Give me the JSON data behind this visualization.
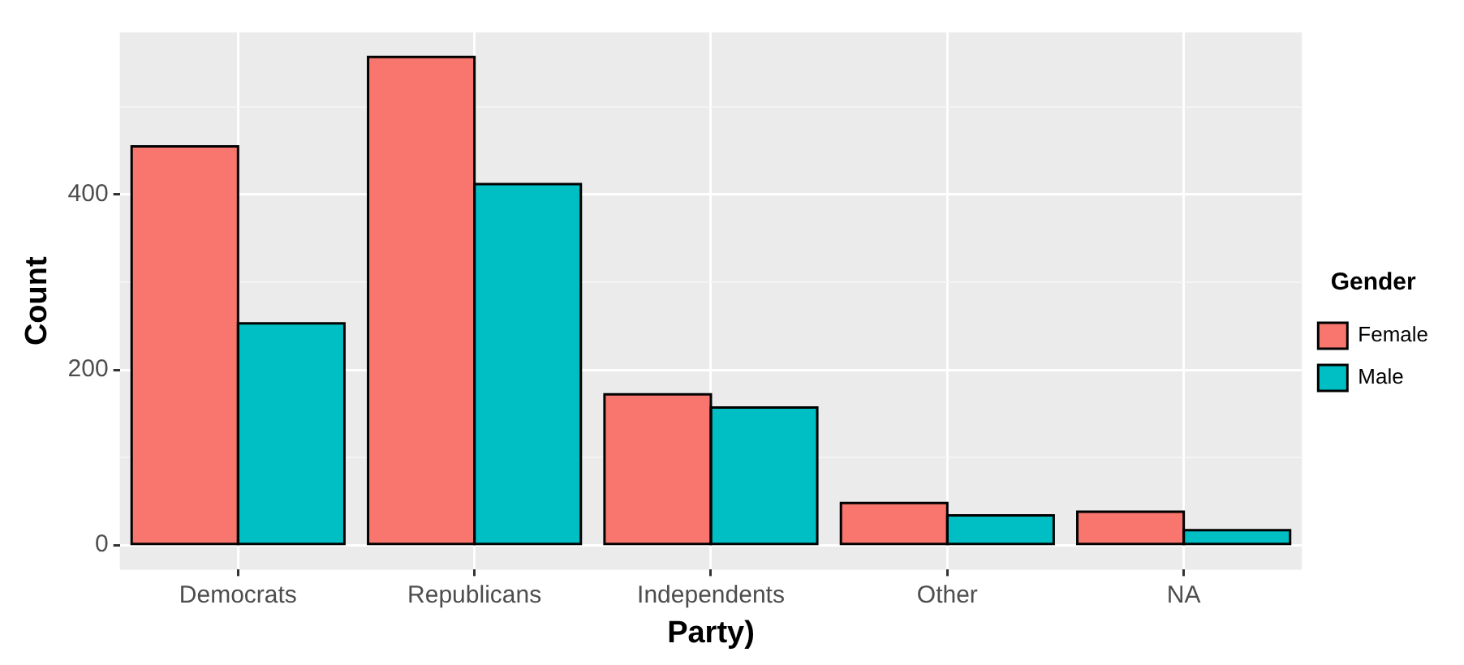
{
  "chart_data": {
    "type": "bar",
    "xlabel": "Party)",
    "ylabel": "Count",
    "legend_title": "Gender",
    "legend": "right",
    "grid": true,
    "categories": [
      "Democrats",
      "Republicans",
      "Independents",
      "Other",
      "NA"
    ],
    "series": [
      {
        "name": "Female",
        "color": "#f8766d",
        "values": [
          455,
          557,
          172,
          48,
          38
        ]
      },
      {
        "name": "Male",
        "color": "#00bfc4",
        "values": [
          253,
          412,
          157,
          34,
          17
        ]
      }
    ],
    "ylim": [
      -28,
      585
    ],
    "yticks": [
      0,
      {
        "value": 100,
        "label": null
      },
      200,
      {
        "value": 300,
        "label": null
      },
      400,
      {
        "value": 500,
        "label": null
      }
    ]
  }
}
